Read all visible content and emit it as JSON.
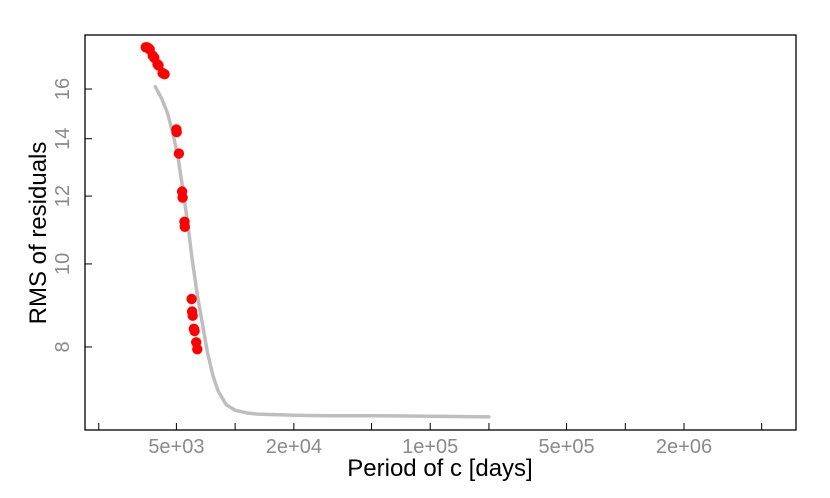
{
  "chart_data": {
    "type": "scatter",
    "xlabel": "Period of c [days]",
    "ylabel": "RMS of residuals",
    "x_scale": "log",
    "y_scale": "log",
    "xlim": [
      1700,
      7500000
    ],
    "ylim": [
      6.4,
      18.5
    ],
    "x_ticks": [
      {
        "value": 2000,
        "label": ""
      },
      {
        "value": 5000,
        "label": "5e+03"
      },
      {
        "value": 10000,
        "label": ""
      },
      {
        "value": 20000,
        "label": "2e+04"
      },
      {
        "value": 50000,
        "label": ""
      },
      {
        "value": 100000,
        "label": "1e+05"
      },
      {
        "value": 200000,
        "label": ""
      },
      {
        "value": 500000,
        "label": "5e+05"
      },
      {
        "value": 1000000,
        "label": ""
      },
      {
        "value": 2000000,
        "label": "2e+06"
      },
      {
        "value": 5000000,
        "label": ""
      }
    ],
    "y_ticks": [
      {
        "value": 8,
        "label": "8"
      },
      {
        "value": 10,
        "label": "10"
      },
      {
        "value": 12,
        "label": "12"
      },
      {
        "value": 14,
        "label": "14"
      },
      {
        "value": 16,
        "label": "16"
      }
    ],
    "grid": false,
    "legend": "none",
    "series": [
      {
        "kind": "line",
        "color": "#bebebe",
        "x": [
          3900,
          4200,
          4500,
          4800,
          5100,
          5400,
          5700,
          6000,
          6400,
          6800,
          7200,
          7700,
          8200,
          9000,
          10000,
          11500,
          13000,
          16000,
          20000,
          30000,
          50000,
          100000,
          200000
        ],
        "y": [
          16.1,
          15.6,
          15.0,
          14.2,
          13.3,
          12.2,
          11.2,
          10.2,
          9.2,
          8.5,
          7.9,
          7.4,
          7.1,
          6.85,
          6.75,
          6.7,
          6.68,
          6.67,
          6.66,
          6.65,
          6.65,
          6.64,
          6.63
        ]
      },
      {
        "kind": "points",
        "color": "#ff0000",
        "x": [
          3480,
          3540,
          3600,
          3650,
          3780,
          3850,
          4000,
          4050,
          4250,
          4350,
          5000,
          5020,
          5150,
          5350,
          5380,
          5500,
          5520,
          5980,
          6020,
          6060,
          6150,
          6200,
          6320,
          6400
        ],
        "y": [
          17.9,
          17.9,
          17.85,
          17.8,
          17.5,
          17.4,
          17.1,
          17.05,
          16.7,
          16.65,
          14.35,
          14.25,
          13.45,
          12.15,
          11.95,
          11.2,
          11.05,
          9.1,
          8.8,
          8.7,
          8.4,
          8.35,
          8.1,
          7.95
        ]
      }
    ]
  }
}
